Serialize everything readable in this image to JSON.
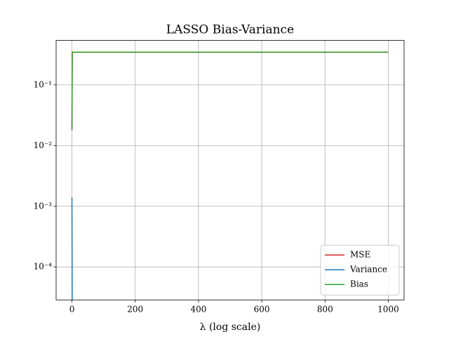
{
  "chart_data": {
    "type": "line",
    "title": "LASSO Bias-Variance",
    "x_label": "λ (log scale)",
    "x": [
      0,
      1,
      2,
      1000
    ],
    "series": [
      {
        "name": "MSE",
        "color": "#d62728",
        "values": [
          0.019,
          0.34,
          0.345,
          0.345
        ]
      },
      {
        "name": "Variance",
        "color": "#1f77b4",
        "values": [
          0.0014,
          1e-05,
          null,
          null
        ]
      },
      {
        "name": "Bias",
        "color": "#2ca02c",
        "values": [
          0.018,
          0.34,
          0.345,
          0.345
        ]
      }
    ],
    "xlim": [
      -50,
      1050
    ],
    "xticks": [
      0,
      200,
      400,
      600,
      800,
      1000
    ],
    "ylim": [
      2.86e-05,
      0.54
    ],
    "ylog": true,
    "yticks": [
      {
        "value": 0.0001,
        "label": "10⁻⁴"
      },
      {
        "value": 0.001,
        "label": "10⁻³"
      },
      {
        "value": 0.01,
        "label": "10⁻²"
      },
      {
        "value": 0.1,
        "label": "10⁻¹"
      }
    ],
    "grid": true,
    "legend": "lower right"
  }
}
